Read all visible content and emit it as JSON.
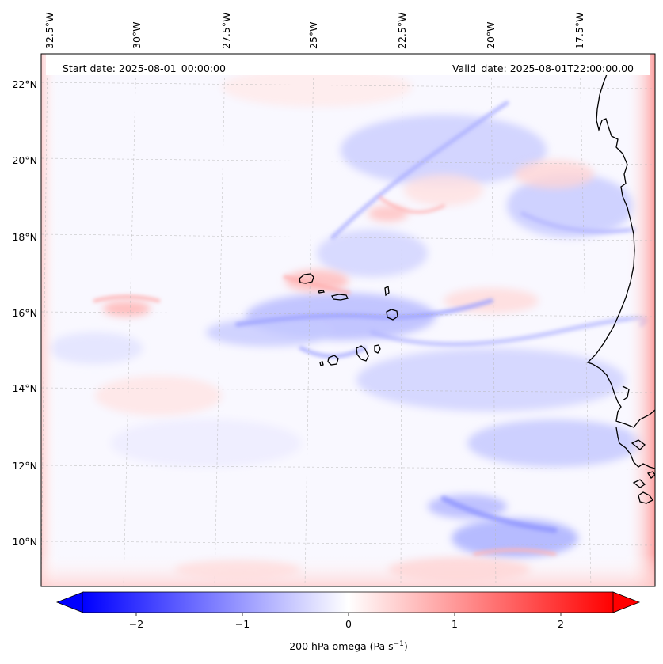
{
  "map": {
    "start_date_text": "Start date: 2025-08-01_00:00:00",
    "valid_date_text": "Valid_date: 2025-08-01T22:00:00.00",
    "lon_labels": [
      "32.5°W",
      "30°W",
      "27.5°W",
      "25°W",
      "22.5°W",
      "20°W",
      "17.5°W"
    ],
    "lat_labels": [
      "22°N",
      "20°N",
      "18°N",
      "16°N",
      "14°N",
      "12°N",
      "10°N"
    ],
    "field": "200 hPa omega",
    "coastline": "Cape Verde islands and West African coast (Mauritania, Senegal, Guinea-Bissau)"
  },
  "colorbar": {
    "ticks": [
      "−2",
      "−1",
      "0",
      "1",
      "2"
    ],
    "label_main": "200 hPa omega (Pa s",
    "label_sup": "−1",
    "label_end": ")",
    "min_color": "#0000ff",
    "mid_color": "#ffffff",
    "max_color": "#ff0000",
    "extend": "both"
  }
}
